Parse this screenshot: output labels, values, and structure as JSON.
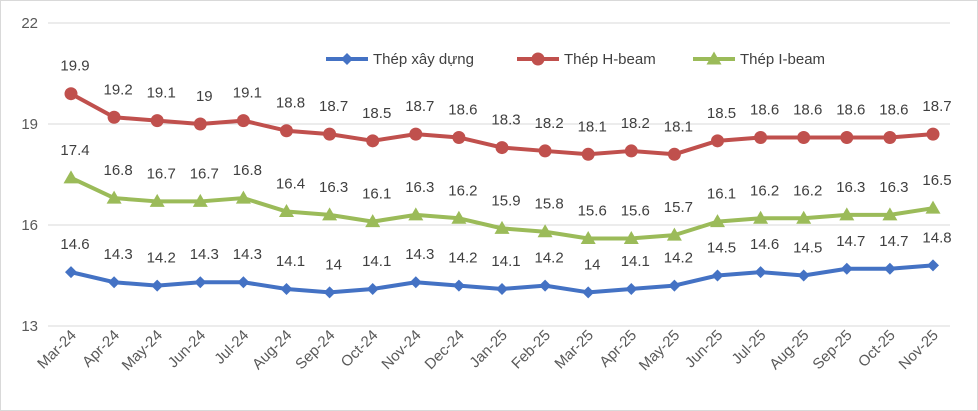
{
  "chart_data": {
    "type": "line",
    "categories": [
      "Mar-24",
      "Apr-24",
      "May-24",
      "Jun-24",
      "Jul-24",
      "Aug-24",
      "Sep-24",
      "Oct-24",
      "Nov-24",
      "Dec-24",
      "Jan-25",
      "Feb-25",
      "Mar-25",
      "Apr-25",
      "May-25",
      "Jun-25",
      "Jul-25",
      "Aug-25",
      "Sep-25",
      "Oct-25",
      "Nov-25"
    ],
    "ylim": [
      13,
      22
    ],
    "yticks": [
      "13",
      "16",
      "19",
      "22"
    ],
    "grid": "horizontal",
    "legend_position": "top",
    "series": [
      {
        "name": "Thép xây dựng",
        "color": "#4472c4",
        "marker": "diamond",
        "values": [
          14.6,
          14.3,
          14.2,
          14.3,
          14.3,
          14.1,
          14,
          14.1,
          14.3,
          14.2,
          14.1,
          14.2,
          14,
          14.1,
          14.2,
          14.5,
          14.6,
          14.5,
          14.7,
          14.7,
          14.8
        ],
        "labels": [
          "14.6",
          "14.3",
          "14.2",
          "14.3",
          "14.3",
          "14.1",
          "14",
          "14.1",
          "14.3",
          "14.2",
          "14.1",
          "14.2",
          "14",
          "14.1",
          "14.2",
          "14.5",
          "14.6",
          "14.5",
          "14.7",
          "14.7",
          "14.8"
        ]
      },
      {
        "name": "Thép H-beam",
        "color": "#c0504d",
        "marker": "circle",
        "values": [
          19.9,
          19.2,
          19.1,
          19,
          19.1,
          18.8,
          18.7,
          18.5,
          18.7,
          18.6,
          18.3,
          18.2,
          18.1,
          18.2,
          18.1,
          18.5,
          18.6,
          18.6,
          18.6,
          18.6,
          18.7
        ],
        "labels": [
          "19.9",
          "19.2",
          "19.1",
          "19",
          "19.1",
          "18.8",
          "18.7",
          "18.5",
          "18.7",
          "18.6",
          "18.3",
          "18.2",
          "18.1",
          "18.2",
          "18.1",
          "18.5",
          "18.6",
          "18.6",
          "18.6",
          "18.6",
          "18.7"
        ]
      },
      {
        "name": "Thép I-beam",
        "color": "#9bbb59",
        "marker": "triangle",
        "values": [
          17.4,
          16.8,
          16.7,
          16.7,
          16.8,
          16.4,
          16.3,
          16.1,
          16.3,
          16.2,
          15.9,
          15.8,
          15.6,
          15.6,
          15.7,
          16.1,
          16.2,
          16.2,
          16.3,
          16.3,
          16.5
        ],
        "labels": [
          "17.4",
          "16.8",
          "16.7",
          "16.7",
          "16.8",
          "16.4",
          "16.3",
          "16.1",
          "16.3",
          "16.2",
          "15.9",
          "15.8",
          "15.6",
          "15.6",
          "15.7",
          "16.1",
          "16.2",
          "16.2",
          "16.3",
          "16.3",
          "16.5"
        ]
      }
    ]
  }
}
